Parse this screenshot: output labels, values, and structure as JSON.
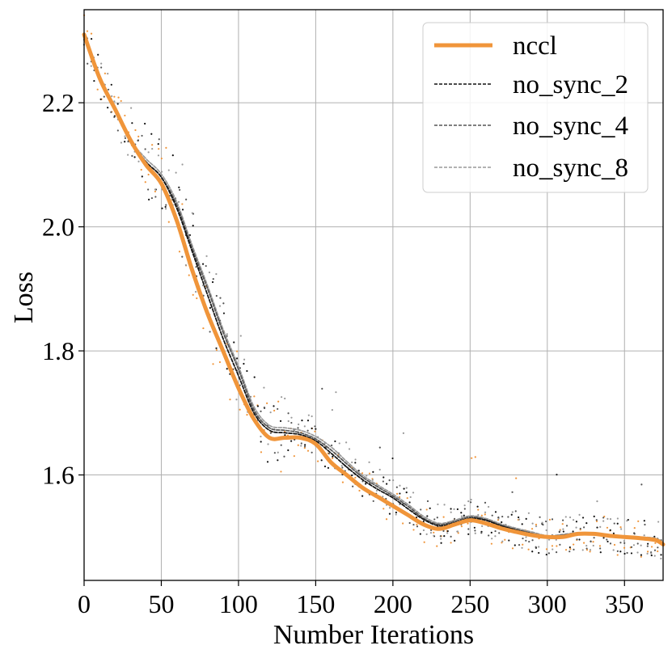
{
  "chart_data": {
    "type": "line",
    "xlabel": "Number Iterations",
    "ylabel": "Loss",
    "xlim": [
      0,
      375
    ],
    "ylim": [
      1.43,
      2.35
    ],
    "xticks": [
      0,
      50,
      100,
      150,
      200,
      250,
      300,
      350
    ],
    "xtick_labels": [
      "0",
      "50",
      "100",
      "150",
      "200",
      "250",
      "300",
      "350"
    ],
    "yticks": [
      1.6,
      1.8,
      2.0,
      2.2
    ],
    "ytick_labels": [
      "1.6",
      "1.8",
      "2.0",
      "2.2"
    ],
    "grid": true,
    "legend_position": "top-right",
    "x": [
      0,
      10,
      20,
      30,
      40,
      50,
      60,
      70,
      80,
      90,
      100,
      110,
      120,
      130,
      140,
      150,
      160,
      170,
      180,
      190,
      200,
      210,
      220,
      230,
      240,
      250,
      260,
      270,
      280,
      290,
      300,
      310,
      320,
      330,
      340,
      350,
      360,
      370,
      375
    ],
    "series": [
      {
        "name": "nccl",
        "style": "solid-thick",
        "color": "#f0953a",
        "values": [
          2.31,
          2.24,
          2.19,
          2.14,
          2.1,
          2.07,
          2.01,
          1.93,
          1.86,
          1.8,
          1.74,
          1.69,
          1.66,
          1.66,
          1.66,
          1.65,
          1.62,
          1.6,
          1.58,
          1.565,
          1.55,
          1.535,
          1.52,
          1.513,
          1.52,
          1.527,
          1.522,
          1.514,
          1.508,
          1.503,
          1.5,
          1.5,
          1.505,
          1.505,
          1.502,
          1.5,
          1.498,
          1.495,
          1.488
        ]
      },
      {
        "name": "no_sync_2",
        "style": "dashed",
        "color": "#111111",
        "values": [
          2.31,
          2.24,
          2.19,
          2.14,
          2.105,
          2.08,
          2.03,
          1.96,
          1.89,
          1.82,
          1.76,
          1.7,
          1.672,
          1.668,
          1.665,
          1.655,
          1.635,
          1.613,
          1.593,
          1.577,
          1.563,
          1.545,
          1.528,
          1.518,
          1.523,
          1.53,
          1.527,
          1.518,
          1.511,
          1.505,
          1.5,
          1.502,
          1.505,
          1.504,
          1.501,
          1.499,
          1.498,
          1.496,
          1.489
        ]
      },
      {
        "name": "no_sync_4",
        "style": "dashed",
        "color": "#555555",
        "values": [
          2.31,
          2.24,
          2.19,
          2.14,
          2.105,
          2.08,
          2.035,
          1.965,
          1.9,
          1.83,
          1.77,
          1.705,
          1.676,
          1.672,
          1.668,
          1.658,
          1.64,
          1.618,
          1.597,
          1.581,
          1.566,
          1.549,
          1.53,
          1.52,
          1.525,
          1.532,
          1.528,
          1.519,
          1.512,
          1.506,
          1.501,
          1.503,
          1.506,
          1.505,
          1.502,
          1.5,
          1.499,
          1.497,
          1.49
        ]
      },
      {
        "name": "no_sync_8",
        "style": "dashed",
        "color": "#999999",
        "values": [
          2.31,
          2.24,
          2.19,
          2.14,
          2.11,
          2.085,
          2.04,
          1.97,
          1.905,
          1.835,
          1.775,
          1.71,
          1.68,
          1.676,
          1.672,
          1.662,
          1.645,
          1.622,
          1.6,
          1.584,
          1.569,
          1.552,
          1.533,
          1.522,
          1.527,
          1.534,
          1.53,
          1.521,
          1.514,
          1.508,
          1.502,
          1.504,
          1.507,
          1.506,
          1.503,
          1.501,
          1.5,
          1.498,
          1.491
        ]
      }
    ]
  }
}
